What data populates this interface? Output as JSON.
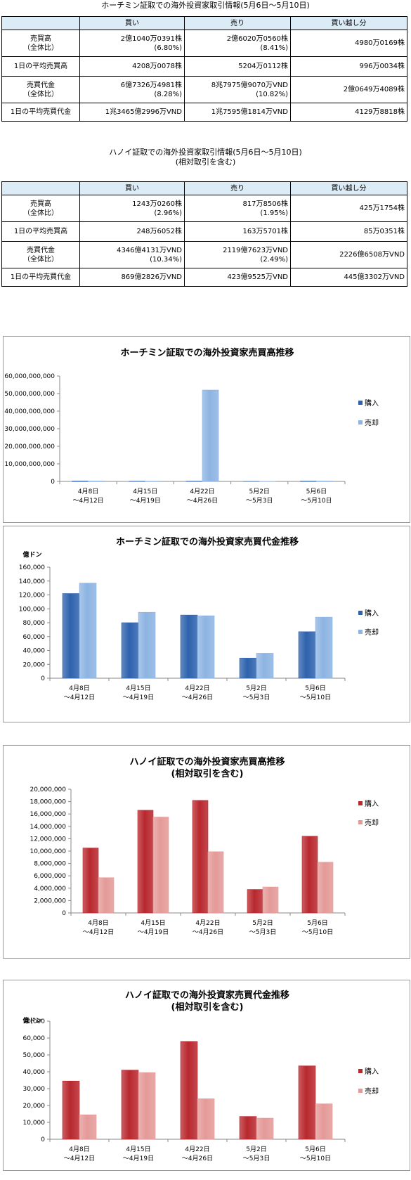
{
  "hcm_table": {
    "title": "ホーチミン証取での海外投資家取引情報(5月6日〜5月10日)",
    "headers": [
      "",
      "買い",
      "売り",
      "買い越し分"
    ],
    "rows": [
      {
        "label": [
          "売買高",
          "（全体比）"
        ],
        "buy": [
          "2億1040万0391株",
          "(6.80%)"
        ],
        "sell": [
          "2億6020万0560株",
          "(8.41%)"
        ],
        "net": "4980万0169株"
      },
      {
        "label": [
          "1日の平均売買高"
        ],
        "buy": [
          "4208万0078株"
        ],
        "sell": [
          "5204万0112株"
        ],
        "net": "996万0034株"
      },
      {
        "label": [
          "売買代金",
          "（全体比）"
        ],
        "buy": [
          "6億7326万4981株",
          "(8.28%)"
        ],
        "sell": [
          "8兆7975億9070万VND",
          "(10.82%)"
        ],
        "net": "2億0649万4089株"
      },
      {
        "label": [
          "1日の平均売買代金"
        ],
        "buy": [
          "1兆3465億2996万VND"
        ],
        "sell": [
          "1兆7595億1814万VND"
        ],
        "net": "4129万8818株"
      }
    ]
  },
  "hanoi_table": {
    "title": "ハノイ証取での海外投資家取引情報(5月6日〜5月10日)",
    "subtitle": "(相対取引を含む)",
    "headers": [
      "",
      "買い",
      "売り",
      "買い越し分"
    ],
    "rows": [
      {
        "label": [
          "売買高",
          "（全体比）"
        ],
        "buy": [
          "1243万0260株",
          "(2.96%)"
        ],
        "sell": [
          "817万8506株",
          "(1.95%)"
        ],
        "net": "425万1754株"
      },
      {
        "label": [
          "1日の平均売買高"
        ],
        "buy": [
          "248万6052株"
        ],
        "sell": [
          "163万5701株"
        ],
        "net": "85万0351株"
      },
      {
        "label": [
          "売買代金",
          "（全体比）"
        ],
        "buy": [
          "4346億4131万VND",
          "(10.34%)"
        ],
        "sell": [
          "2119億7623万VND",
          "(2.49%)"
        ],
        "net": "2226億6508万VND"
      },
      {
        "label": [
          "1日の平均売買代金"
        ],
        "buy": [
          "869億2826万VND"
        ],
        "sell": [
          "423億9525万VND"
        ],
        "net": "445億3302万VND"
      }
    ]
  },
  "chart_data": [
    {
      "type": "bar",
      "title": [
        "ホーチミン証取での海外投資家売買高推移"
      ],
      "ylabel": "",
      "categories": [
        [
          "4月8日",
          "〜4月12日"
        ],
        [
          "4月15日",
          "〜4月19日"
        ],
        [
          "4月22日",
          "〜4月26日"
        ],
        [
          "5月2日",
          "〜5月3日"
        ],
        [
          "5月6日",
          "〜5月10日"
        ]
      ],
      "ylim": [
        0,
        60000000000
      ],
      "yticks": [
        "0",
        "10,000,000,000",
        "20,000,000,000",
        "30,000,000,000",
        "40,000,000,000",
        "50,000,000,000",
        "60,000,000,000"
      ],
      "grid": false,
      "legend": "right",
      "series": [
        {
          "name": "購入",
          "values": [
            250000000,
            160000000,
            180000000,
            60000000,
            210000000
          ],
          "color": "#2e62ad"
        },
        {
          "name": "売却",
          "values": [
            270000000,
            190000000,
            52000000000,
            70000000,
            260000000
          ],
          "color": "#8db4e2"
        }
      ]
    },
    {
      "type": "bar",
      "title": [
        "ホーチミン証取での海外投資家売買代金推移"
      ],
      "ylabel": "億ドン",
      "categories": [
        [
          "4月8日",
          "〜4月12日"
        ],
        [
          "4月15日",
          "〜4月19日"
        ],
        [
          "4月22日",
          "〜4月26日"
        ],
        [
          "5月2日",
          "〜5月3日"
        ],
        [
          "5月6日",
          "〜5月10日"
        ]
      ],
      "ylim": [
        0,
        160000
      ],
      "yticks": [
        "0",
        "20,000",
        "40,000",
        "60,000",
        "80,000",
        "100,000",
        "120,000",
        "140,000",
        "160,000"
      ],
      "grid": false,
      "legend": "right",
      "series": [
        {
          "name": "購入",
          "values": [
            122000,
            80000,
            91000,
            29000,
            67000
          ],
          "color": "#2e62ad"
        },
        {
          "name": "売却",
          "values": [
            137000,
            95000,
            90000,
            36000,
            88000
          ],
          "color": "#8db4e2"
        }
      ]
    },
    {
      "type": "bar",
      "title": [
        "ハノイ証取での海外投資家売買高推移",
        "(相対取引を含む)"
      ],
      "ylabel": "",
      "categories": [
        [
          "4月8日",
          "〜4月12日"
        ],
        [
          "4月15日",
          "〜4月19日"
        ],
        [
          "4月22日",
          "〜4月26日"
        ],
        [
          "5月2日",
          "〜5月3日"
        ],
        [
          "5月6日",
          "〜5月10日"
        ]
      ],
      "ylim": [
        0,
        20000000
      ],
      "yticks": [
        "0",
        "2,000,000",
        "4,000,000",
        "6,000,000",
        "8,000,000",
        "10,000,000",
        "12,000,000",
        "14,000,000",
        "16,000,000",
        "18,000,000",
        "20,000,000"
      ],
      "grid": false,
      "legend": "right",
      "series": [
        {
          "name": "購入",
          "values": [
            10500000,
            16600000,
            18200000,
            3800000,
            12400000
          ],
          "color": "#b8282e"
        },
        {
          "name": "売却",
          "values": [
            5700000,
            15500000,
            9900000,
            4200000,
            8200000
          ],
          "color": "#e49a98"
        }
      ]
    },
    {
      "type": "bar",
      "title": [
        "ハノイ証取での海外投資家売買代金推移",
        "(相対取引を含む)"
      ],
      "ylabel": "億ドン",
      "categories": [
        [
          "4月8日",
          "〜4月12日"
        ],
        [
          "4月15日",
          "〜4月19日"
        ],
        [
          "4月22日",
          "〜4月26日"
        ],
        [
          "5月2日",
          "〜5月3日"
        ],
        [
          "5月6日",
          "〜5月10日"
        ]
      ],
      "ylim": [
        0,
        70000
      ],
      "yticks": [
        "0",
        "10,000",
        "20,000",
        "30,000",
        "40,000",
        "50,000",
        "60,000",
        "70,000"
      ],
      "grid": false,
      "legend": "right",
      "series": [
        {
          "name": "購入",
          "values": [
            34500,
            41000,
            58000,
            13500,
            43500
          ],
          "color": "#b8282e"
        },
        {
          "name": "売却",
          "values": [
            14500,
            39500,
            24000,
            12500,
            21000
          ],
          "color": "#e49a98"
        }
      ]
    }
  ]
}
